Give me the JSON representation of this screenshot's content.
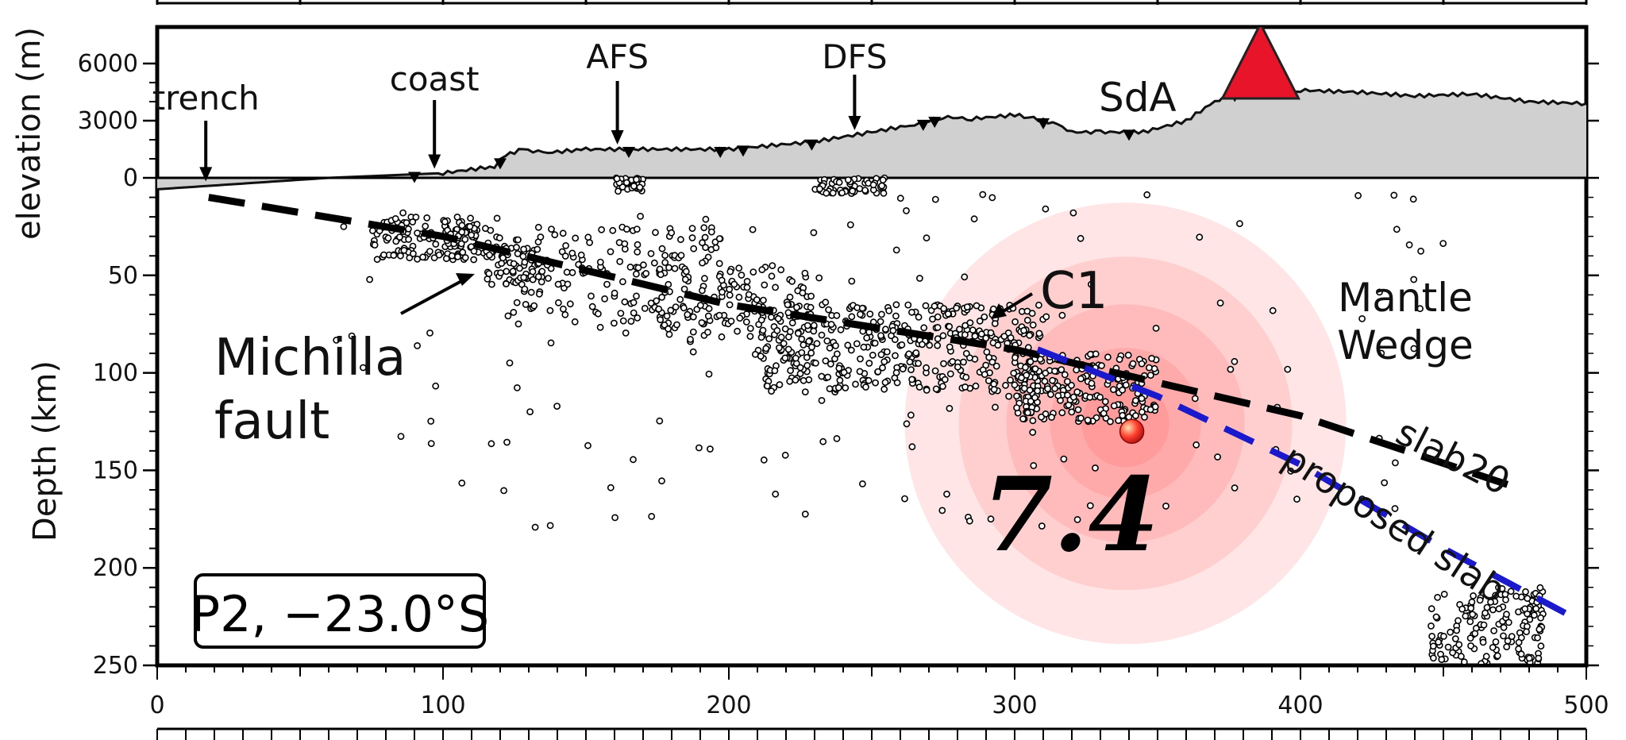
{
  "figure": {
    "profile_box_label": "P2,  −23.0°S",
    "magnitude_label": "7.4",
    "colors": {
      "topography_fill": "#d0d0d0",
      "volcano": "#e8142a",
      "hypocenter": "#e8322a",
      "halo": "#ff6e6e",
      "proposed_slab_line": "#1a1acc",
      "slab20_line": "#000000"
    }
  },
  "chart_data": {
    "type": "scatter",
    "x_axis": {
      "range": [
        0,
        500
      ],
      "ticks": [
        0,
        100,
        200,
        300,
        400,
        500
      ],
      "tick_labels": [
        "0",
        "100",
        "200",
        "300",
        "400",
        "500"
      ]
    },
    "elevation_axis": {
      "label": "elevation (m)",
      "ticks": [
        0,
        3000,
        6000
      ],
      "tick_labels": [
        "0",
        "3000",
        "6000"
      ],
      "range": [
        -600,
        7400
      ]
    },
    "depth_axis": {
      "label": "Depth (km)",
      "ticks": [
        50,
        100,
        150,
        200,
        250
      ],
      "tick_labels": [
        "50",
        "100",
        "150",
        "200",
        "250"
      ],
      "range": [
        0,
        250
      ]
    },
    "topography": {
      "x": [
        0,
        20,
        60,
        100,
        118,
        122,
        128,
        135,
        150,
        170,
        200,
        230,
        250,
        265,
        275,
        285,
        300,
        305,
        315,
        320,
        330,
        345,
        360,
        370,
        378,
        390,
        400,
        420,
        440,
        460,
        480,
        500
      ],
      "elevation_m": [
        -600,
        -400,
        0,
        250,
        600,
        1200,
        1500,
        1300,
        1500,
        1500,
        1500,
        1900,
        2400,
        2800,
        3200,
        3100,
        3300,
        3200,
        2800,
        2400,
        2400,
        2400,
        3000,
        4000,
        4500,
        4700,
        4600,
        4500,
        4300,
        4400,
        4000,
        3900
      ]
    },
    "volcano": {
      "x": 386,
      "elevation_m": 5000
    },
    "surface_annotations": [
      {
        "text": "trench",
        "x": 17,
        "arrow": true
      },
      {
        "text": "coast",
        "x": 97,
        "arrow": true
      },
      {
        "text": "AFS",
        "x": 161,
        "arrow": true
      },
      {
        "text": "DFS",
        "x": 244,
        "arrow": true
      },
      {
        "text": "SdA",
        "x": 343,
        "arrow": false
      }
    ],
    "hypocenter": {
      "x": 341,
      "depth_km": 130,
      "magnitude": 7.4
    },
    "slab_lines": [
      {
        "name": "slab20",
        "x": [
          18,
          100,
          200,
          300,
          400,
          478
        ],
        "depth_km": [
          10,
          30,
          65,
          88,
          122,
          160
        ]
      },
      {
        "name": "proposed slab",
        "x": [
          308,
          350,
          400,
          450,
          495
        ],
        "depth_km": [
          88,
          112,
          147,
          190,
          225
        ]
      }
    ],
    "region_labels": [
      {
        "text": "Mantle",
        "x": 470,
        "depth_km": 62
      },
      {
        "text": "Wedge",
        "x": 470,
        "depth_km": 87
      },
      {
        "text": "Michilla",
        "x": 60,
        "depth_km": 93
      },
      {
        "text": "fault",
        "x": 40,
        "depth_km": 125
      },
      {
        "text": "C1",
        "x": 308,
        "depth_km": 60
      }
    ],
    "earthquake_clusters": [
      {
        "x": [
          75,
          120
        ],
        "depth_km": [
          20,
          42
        ],
        "n": 150
      },
      {
        "x": [
          115,
          135
        ],
        "depth_km": [
          35,
          55
        ],
        "n": 60
      },
      {
        "x": [
          120,
          200
        ],
        "depth_km": [
          25,
          75
        ],
        "n": 170
      },
      {
        "x": [
          175,
          230
        ],
        "depth_km": [
          45,
          85
        ],
        "n": 120
      },
      {
        "x": [
          210,
          310
        ],
        "depth_km": [
          65,
          110
        ],
        "n": 420
      },
      {
        "x": [
          300,
          350
        ],
        "depth_km": [
          90,
          125
        ],
        "n": 200
      },
      {
        "x": [
          160,
          170
        ],
        "depth_km": [
          0,
          7
        ],
        "n": 30
      },
      {
        "x": [
          230,
          255
        ],
        "depth_km": [
          0,
          8
        ],
        "n": 55
      },
      {
        "x": [
          445,
          485
        ],
        "depth_km": [
          210,
          250
        ],
        "n": 150
      },
      {
        "x": [
          60,
          450
        ],
        "depth_km": [
          8,
          180
        ],
        "n": 150
      }
    ]
  }
}
